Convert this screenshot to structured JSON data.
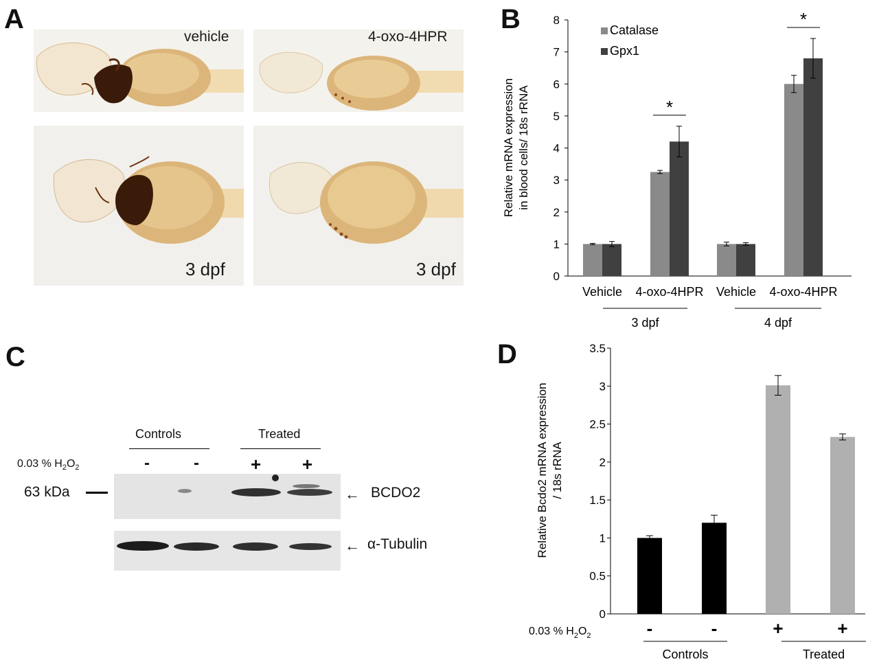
{
  "panels": {
    "A": {
      "letter": "A",
      "tiles": [
        {
          "label": "vehicle"
        },
        {
          "label": "4-oxo-4HPR"
        },
        {
          "label": "3 dpf"
        },
        {
          "label": "3 dpf"
        }
      ]
    },
    "B": {
      "letter": "B"
    },
    "C": {
      "letter": "C",
      "group_labels": [
        "Controls",
        "Treated"
      ],
      "treatment_label": "0.03 % H",
      "treatment_sub": "2",
      "treatment_suffix": "O",
      "treatment_sub2": "2",
      "lane_signs": [
        "-",
        "-",
        "+",
        "+"
      ],
      "marker_label": "63 kDa",
      "band_labels": [
        "BCDO2",
        "α-Tubulin"
      ]
    },
    "D": {
      "letter": "D"
    }
  },
  "chart_data": [
    {
      "id": "B",
      "type": "bar",
      "ylabel": "Relative  mRNA expression in blood cells/ 18s rRNA",
      "ylim": [
        0,
        8
      ],
      "yticks": [
        "0",
        "1",
        "2",
        "3",
        "4",
        "5",
        "6",
        "7",
        "8"
      ],
      "categories": [
        "Vehicle",
        "4-oxo-4HPR",
        "Vehicle",
        "4-oxo-4HPR"
      ],
      "groups": [
        "3 dpf",
        "4 dpf"
      ],
      "legend_position": "top-left",
      "series": [
        {
          "name": "Catalase",
          "color": "#8a8a8a",
          "values": [
            1.0,
            3.25,
            1.0,
            6.0
          ],
          "errors": [
            0.02,
            0.05,
            0.06,
            0.27
          ]
        },
        {
          "name": "Gpx1",
          "color": "#404040",
          "values": [
            1.0,
            4.2,
            1.0,
            6.8
          ],
          "errors": [
            0.08,
            0.48,
            0.04,
            0.62
          ]
        }
      ],
      "significance": [
        {
          "category": 1,
          "label": "*"
        },
        {
          "category": 3,
          "label": "*"
        }
      ]
    },
    {
      "id": "D",
      "type": "bar",
      "ylabel": "Relative Bcdo2 mRNA expression / 18s rRNA",
      "ylim": [
        0,
        3.5
      ],
      "yticks": [
        "0",
        "0.5",
        "1",
        "1.5",
        "2",
        "2.5",
        "3",
        "3.5"
      ],
      "treatment_label": "0.03 % H",
      "treatment_sub": "2",
      "treatment_suffix": "O",
      "treatment_sub2": "2",
      "categories": [
        "-",
        "-",
        "+",
        "+"
      ],
      "groups": [
        "Controls",
        "Treated"
      ],
      "values": [
        1.0,
        1.2,
        3.01,
        2.33
      ],
      "errors": [
        0.03,
        0.1,
        0.13,
        0.04
      ],
      "colors": [
        "#000000",
        "#000000",
        "#b0b0b0",
        "#b0b0b0"
      ]
    }
  ]
}
